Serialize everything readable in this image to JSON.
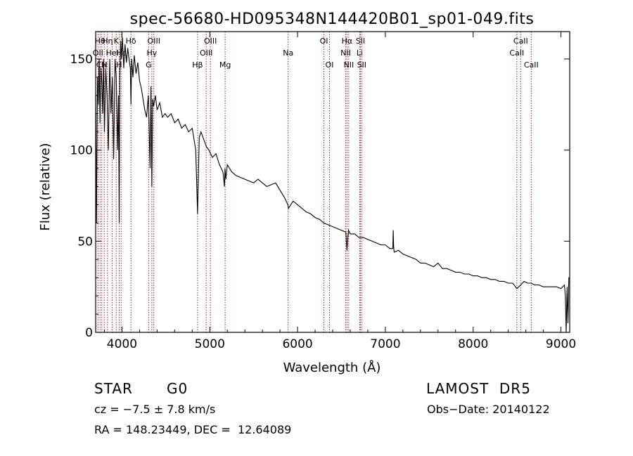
{
  "chart_data": {
    "type": "line",
    "title": "spec-56680-HD095348N144420B01_sp01-049.fits",
    "xlabel": "Wavelength (Å)",
    "ylabel": "Flux (relative)",
    "xlim": [
      3700,
      9100
    ],
    "ylim": [
      0,
      165
    ],
    "xticks": [
      4000,
      5000,
      6000,
      7000,
      8000,
      9000
    ],
    "yticks": [
      0,
      50,
      100,
      150
    ],
    "grid": false,
    "line_color": "#000000",
    "marker_color": "#b22222",
    "series": [
      {
        "x": [
          3700,
          3710,
          3720,
          3730,
          3740,
          3750,
          3760,
          3770,
          3780,
          3790,
          3800,
          3815,
          3830,
          3845,
          3860,
          3875,
          3890,
          3905,
          3920,
          3935,
          3950,
          3960,
          3968,
          3975,
          3985,
          3995,
          4005,
          4020,
          4035,
          4050,
          4065,
          4080,
          4095,
          4102,
          4110,
          4125,
          4140,
          4160,
          4180,
          4200,
          4220,
          4240,
          4260,
          4280,
          4300,
          4320,
          4330,
          4340,
          4350,
          4360,
          4380,
          4400,
          4430,
          4460,
          4490,
          4520,
          4560,
          4600,
          4640,
          4680,
          4720,
          4760,
          4800,
          4840,
          4861,
          4880,
          4900,
          4930,
          4960,
          4990,
          5030,
          5070,
          5110,
          5150,
          5167,
          5173,
          5183,
          5200,
          5250,
          5300,
          5350,
          5400,
          5450,
          5500,
          5550,
          5600,
          5650,
          5700,
          5750,
          5800,
          5850,
          5890,
          5896,
          5950,
          6000,
          6050,
          6100,
          6150,
          6200,
          6250,
          6300,
          6350,
          6400,
          6450,
          6500,
          6550,
          6563,
          6580,
          6600,
          6650,
          6700,
          6750,
          6800,
          6850,
          6900,
          6950,
          7000,
          7050,
          7085,
          7090,
          7095,
          7100,
          7150,
          7200,
          7250,
          7300,
          7350,
          7400,
          7450,
          7500,
          7550,
          7600,
          7650,
          7700,
          7750,
          7800,
          7850,
          7900,
          7950,
          8000,
          8050,
          8100,
          8150,
          8200,
          8250,
          8300,
          8350,
          8400,
          8450,
          8498,
          8542,
          8580,
          8620,
          8662,
          8700,
          8750,
          8800,
          8850,
          8900,
          8950,
          9000,
          9020,
          9040,
          9050,
          9060,
          9070,
          9080,
          9090,
          9100
        ],
        "y": [
          130,
          60,
          140,
          125,
          150,
          115,
          145,
          138,
          120,
          150,
          110,
          145,
          130,
          100,
          150,
          120,
          140,
          95,
          150,
          140,
          100,
          130,
          60,
          140,
          160,
          150,
          162,
          145,
          158,
          148,
          156,
          150,
          145,
          125,
          150,
          140,
          152,
          142,
          148,
          138,
          134,
          128,
          122,
          118,
          130,
          90,
          135,
          80,
          128,
          124,
          130,
          122,
          126,
          118,
          120,
          118,
          120,
          115,
          117,
          112,
          114,
          110,
          112,
          100,
          65,
          107,
          110,
          106,
          102,
          100,
          96,
          98,
          92,
          88,
          80,
          90,
          84,
          92,
          88,
          86,
          85,
          84,
          83,
          82,
          84,
          82,
          80,
          81,
          82,
          78,
          74,
          70,
          68,
          72,
          70,
          68,
          66,
          65,
          63,
          62,
          60,
          59,
          58,
          57,
          56,
          55,
          45,
          56,
          54,
          54,
          52,
          52,
          51,
          50,
          49,
          48,
          48,
          46,
          46,
          56,
          47,
          44,
          45,
          43,
          42,
          41,
          40,
          38,
          38,
          37,
          36,
          38,
          35,
          35,
          34,
          33,
          33,
          32,
          32,
          31,
          31,
          30,
          30,
          29,
          29,
          28,
          28,
          27,
          27,
          24,
          26,
          28,
          27,
          27,
          26,
          26,
          25,
          25,
          25,
          25,
          24,
          25,
          26,
          20,
          0,
          25,
          5,
          30,
          30
        ]
      }
    ],
    "lines": [
      {
        "wl": 3727,
        "label": "OII",
        "row": 1
      },
      {
        "wl": 3750,
        "label": "Hθ",
        "row": 0
      },
      {
        "wl": 3770,
        "label": "CN",
        "row": 2
      },
      {
        "wl": 3798,
        "label": "H",
        "row": 2
      },
      {
        "wl": 3835,
        "label": "Hη",
        "row": 0
      },
      {
        "wl": 3889,
        "label": "HeI",
        "row": 1
      },
      {
        "wl": 3934,
        "label": "K",
        "row": 0
      },
      {
        "wl": 3968,
        "label": "H",
        "row": 2
      },
      {
        "wl": 3990,
        "label": "Hε",
        "row": 1
      },
      {
        "wl": 4102,
        "label": "Hδ",
        "row": 0
      },
      {
        "wl": 4304,
        "label": "G",
        "row": 2
      },
      {
        "wl": 4340,
        "label": "Hγ",
        "row": 1
      },
      {
        "wl": 4363,
        "label": "OIII",
        "row": 0
      },
      {
        "wl": 4861,
        "label": "Hβ",
        "row": 2
      },
      {
        "wl": 4959,
        "label": "OIII",
        "row": 1
      },
      {
        "wl": 5007,
        "label": "OIII",
        "row": 0
      },
      {
        "wl": 5175,
        "label": "Mg",
        "row": 2
      },
      {
        "wl": 5893,
        "label": "Na",
        "row": 1
      },
      {
        "wl": 6300,
        "label": "OI",
        "row": 0
      },
      {
        "wl": 6364,
        "label": "OI",
        "row": 2
      },
      {
        "wl": 6548,
        "label": "NII",
        "row": 1
      },
      {
        "wl": 6563,
        "label": "Hα",
        "row": 0
      },
      {
        "wl": 6583,
        "label": "NII",
        "row": 2
      },
      {
        "wl": 6708,
        "label": "Li",
        "row": 1
      },
      {
        "wl": 6716,
        "label": "SII",
        "row": 0
      },
      {
        "wl": 6731,
        "label": "SII",
        "row": 2
      },
      {
        "wl": 8498,
        "label": "CaII",
        "row": 1
      },
      {
        "wl": 8542,
        "label": "CaII",
        "row": 0
      },
      {
        "wl": 8662,
        "label": "CaII",
        "row": 2
      }
    ]
  },
  "info": {
    "obj_type": "STAR",
    "subclass": "G0",
    "cz": "cz = −7.5 ± 7.8 km/s",
    "radec": "RA = 148.23449, DEC =  12.64089",
    "survey": "LAMOST  DR5",
    "obsdate": "Obs−Date: 20140122"
  }
}
